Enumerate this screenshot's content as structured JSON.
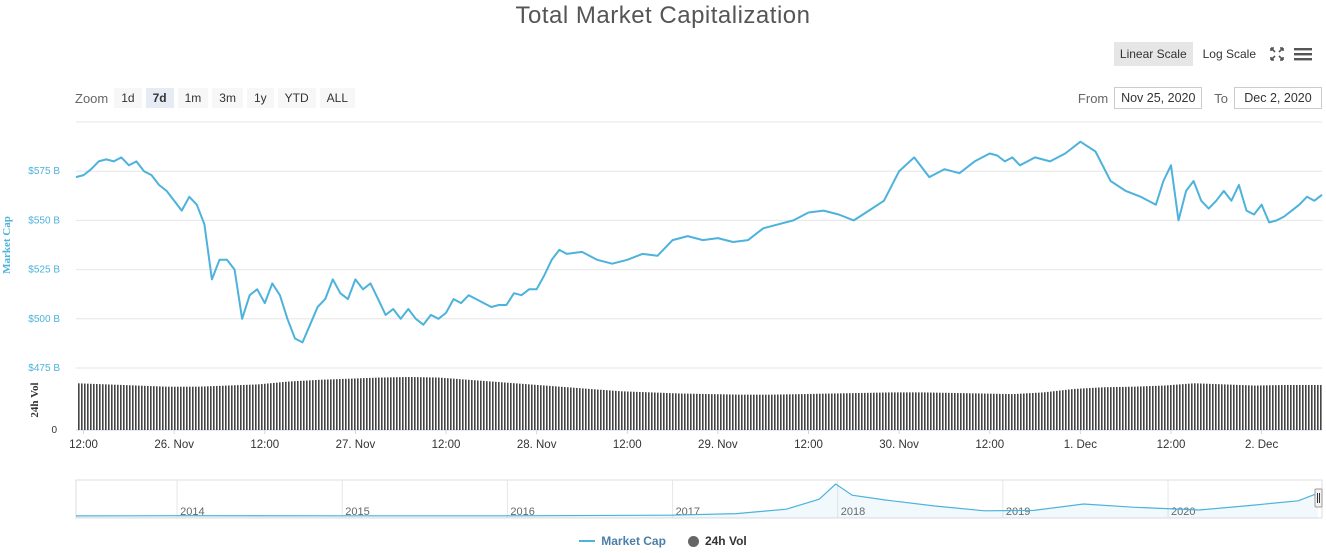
{
  "title": "Total Market Capitalization",
  "scale": {
    "linear_label": "Linear Scale",
    "log_label": "Log Scale",
    "active": "linear"
  },
  "icons": {
    "fullscreen": "fullscreen-icon",
    "menu": "menu-icon"
  },
  "zoom": {
    "label": "Zoom",
    "buttons": [
      "1d",
      "7d",
      "1m",
      "3m",
      "1y",
      "YTD",
      "ALL"
    ],
    "active": "7d"
  },
  "range": {
    "from_label": "From",
    "from_value": "Nov 25, 2020",
    "to_label": "To",
    "to_value": "Dec 2, 2020"
  },
  "colors": {
    "line": "#4db2dc",
    "bars": "#444444",
    "grid": "#e6e6e6",
    "axis_text": "#4db2dc"
  },
  "legend": {
    "market_cap": "Market Cap",
    "vol": "24h Vol"
  },
  "chart_data": [
    {
      "type": "line",
      "ylabel": "Market Cap",
      "ylim": [
        475,
        600
      ],
      "y_ticks": [
        475,
        500,
        525,
        550,
        575
      ],
      "y_tick_labels": [
        "$475 B",
        "$500 B",
        "$525 B",
        "$550 B",
        "$575 B"
      ],
      "x_tick_labels": [
        "12:00",
        "26. Nov",
        "12:00",
        "27. Nov",
        "12:00",
        "28. Nov",
        "12:00",
        "29. Nov",
        "12:00",
        "30. Nov",
        "12:00",
        "1. Dec",
        "12:00",
        "2. Dec"
      ],
      "x_tick_hours": [
        0,
        12,
        24,
        36,
        48,
        60,
        72,
        84,
        96,
        108,
        120,
        132,
        144,
        156
      ],
      "x_start_hour": -1,
      "x_end_hour": 164,
      "series": [
        {
          "name": "Market Cap",
          "x": [
            -1,
            0,
            1,
            2,
            3,
            4,
            5,
            6,
            7,
            8,
            9,
            10,
            11,
            12,
            13,
            14,
            15,
            16,
            17,
            18,
            19,
            20,
            21,
            22,
            23,
            24,
            25,
            26,
            27,
            28,
            29,
            30,
            31,
            32,
            33,
            34,
            35,
            36,
            37,
            38,
            39,
            40,
            41,
            42,
            43,
            44,
            45,
            46,
            47,
            48,
            49,
            50,
            51,
            52,
            53,
            54,
            55,
            56,
            57,
            58,
            59,
            60,
            61,
            62,
            63,
            64,
            66,
            68,
            70,
            72,
            74,
            76,
            78,
            80,
            82,
            84,
            86,
            88,
            90,
            92,
            94,
            96,
            98,
            100,
            102,
            104,
            106,
            108,
            110,
            112,
            114,
            116,
            118,
            120,
            121,
            122,
            123,
            124,
            125,
            126,
            128,
            130,
            132,
            134,
            136,
            138,
            140,
            142,
            143,
            144,
            145,
            146,
            147,
            148,
            149,
            150,
            151,
            152,
            153,
            154,
            155,
            156,
            157,
            158,
            159,
            160,
            161,
            162,
            163,
            164
          ],
          "values": [
            572,
            573,
            576,
            580,
            581,
            580,
            582,
            578,
            580,
            575,
            573,
            568,
            565,
            560,
            555,
            562,
            558,
            548,
            520,
            530,
            530,
            525,
            500,
            512,
            515,
            508,
            518,
            512,
            500,
            490,
            488,
            497,
            506,
            510,
            520,
            513,
            510,
            520,
            515,
            518,
            510,
            502,
            505,
            500,
            505,
            500,
            497,
            502,
            500,
            503,
            510,
            508,
            512,
            510,
            508,
            506,
            507,
            507,
            513,
            512,
            515,
            515,
            522,
            530,
            535,
            533,
            534,
            530,
            528,
            530,
            533,
            532,
            540,
            542,
            540,
            541,
            539,
            540,
            546,
            548,
            550,
            554,
            555,
            553,
            550,
            555,
            560,
            575,
            582,
            572,
            576,
            574,
            580,
            584,
            583,
            580,
            582,
            578,
            580,
            582,
            580,
            584,
            590,
            585,
            570,
            565,
            562,
            558,
            570,
            578,
            550,
            565,
            570,
            560,
            556,
            560,
            565,
            560,
            568,
            555,
            553,
            558,
            549,
            550,
            552,
            555,
            558,
            562,
            560,
            563
          ]
        }
      ]
    },
    {
      "type": "bar",
      "ylabel": "24h Vol",
      "y_tick_labels": [
        "0"
      ],
      "series": [
        {
          "name": "24h Vol",
          "x": [
            -1,
            3,
            7,
            11,
            15,
            19,
            23,
            27,
            31,
            35,
            39,
            43,
            47,
            51,
            55,
            59,
            63,
            67,
            71,
            75,
            79,
            83,
            87,
            91,
            95,
            99,
            103,
            107,
            111,
            115,
            119,
            123,
            127,
            131,
            135,
            139,
            143,
            147,
            151,
            155,
            159,
            164
          ],
          "values": [
            82,
            80,
            78,
            76,
            76,
            78,
            80,
            85,
            88,
            90,
            92,
            93,
            92,
            88,
            84,
            80,
            76,
            72,
            68,
            66,
            64,
            63,
            62,
            62,
            63,
            64,
            65,
            66,
            66,
            65,
            64,
            63,
            66,
            72,
            75,
            76,
            78,
            82,
            80,
            78,
            79,
            79
          ]
        }
      ]
    },
    {
      "type": "area",
      "role": "navigator",
      "x_tick_labels": [
        "2014",
        "2015",
        "2016",
        "2017",
        "2018",
        "2019",
        "2020"
      ],
      "series": [
        {
          "name": "Market Cap",
          "x": [
            2013.4,
            2014,
            2015,
            2016,
            2017,
            2017.4,
            2017.7,
            2017.9,
            2018.0,
            2018.1,
            2018.3,
            2018.6,
            2018.9,
            2019.2,
            2019.5,
            2019.8,
            2020.2,
            2020.5,
            2020.8,
            2020.92
          ],
          "values": [
            2,
            8,
            4,
            6,
            20,
            60,
            170,
            420,
            800,
            520,
            400,
            250,
            130,
            140,
            300,
            220,
            150,
            260,
            380,
            570
          ]
        }
      ]
    }
  ]
}
